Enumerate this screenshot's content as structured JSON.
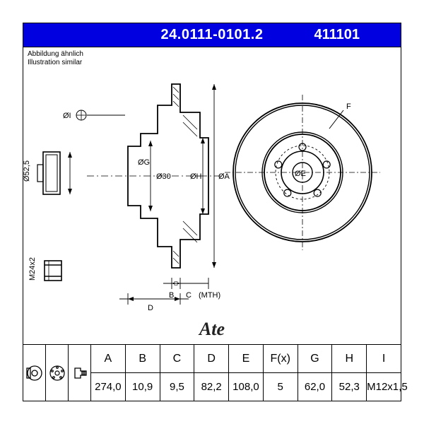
{
  "header": {
    "part_number": "24.0111-0101.2",
    "alt_number": "411101",
    "subtitle_de": "Abbildung ähnlich",
    "subtitle_en": "Illustration similar",
    "logo_text": "Ate"
  },
  "table": {
    "columns": [
      "A",
      "B",
      "C",
      "D",
      "E",
      "F(x)",
      "G",
      "H",
      "I"
    ],
    "values": [
      "274,0",
      "10,9",
      "9,5",
      "82,2",
      "108,0",
      "5",
      "62,0",
      "52,3",
      "M12x1,5"
    ]
  },
  "drawing": {
    "type": "technical-diagram",
    "stroke": "#000000",
    "stroke_width": 1.2,
    "stroke_heavy": 1.8,
    "fill": "none",
    "background": "#ffffff",
    "side_view": {
      "labels": [
        "ØI",
        "ØG",
        "Ø30",
        "ØH",
        "ØA",
        "B",
        "C",
        "(MTH)",
        "D"
      ],
      "pad_label": "Ø52,5",
      "nut_label": "M24x2"
    },
    "front_view": {
      "labels": [
        "F",
        "ØE"
      ],
      "bolt_count": 5,
      "disc_outer_r": 95,
      "disc_inner_r": 55,
      "hub_r": 26,
      "bore_r": 13,
      "bolt_circle_r": 36,
      "bolt_hole_r": 5
    }
  }
}
